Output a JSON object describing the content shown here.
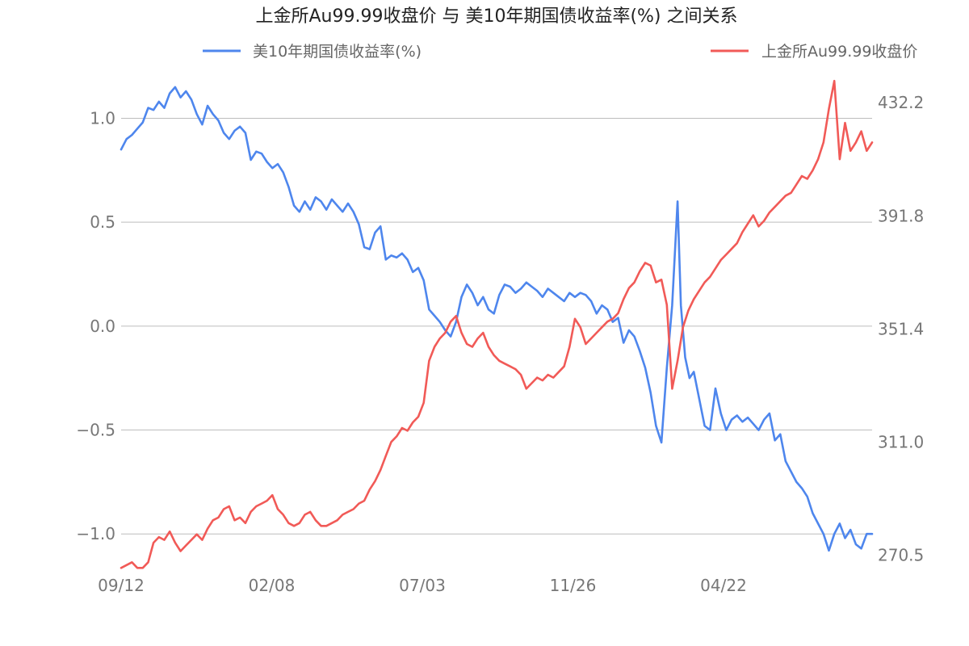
{
  "chart_data": {
    "type": "line",
    "title": "上金所Au99.99收盘价 与 美10年期国债收益率(%) 之间关系",
    "x_tick_labels": [
      "09/12",
      "02/08",
      "07/03",
      "11/26",
      "04/22"
    ],
    "y_left": {
      "ticks": [
        "1.0",
        "0.5",
        "0.0",
        "−0.5",
        "−1.0"
      ],
      "tick_values": [
        1.0,
        0.5,
        0.0,
        -0.5,
        -1.0
      ],
      "range": [
        -1.17,
        1.2
      ]
    },
    "y_right": {
      "ticks": [
        "432.2",
        "391.8",
        "351.4",
        "311.0",
        "270.5"
      ],
      "tick_values": [
        432.2,
        391.8,
        351.4,
        311.0,
        270.5
      ],
      "range": [
        265.5,
        441.5
      ]
    },
    "grid": true,
    "legend_placement": "top",
    "series": [
      {
        "name": "美10年期国债收益率(%)",
        "axis": "left",
        "color": "#4e86ed",
        "points": [
          [
            0,
            0.85
          ],
          [
            5,
            0.9
          ],
          [
            10,
            0.92
          ],
          [
            15,
            0.95
          ],
          [
            20,
            0.98
          ],
          [
            25,
            1.05
          ],
          [
            30,
            1.04
          ],
          [
            35,
            1.08
          ],
          [
            40,
            1.05
          ],
          [
            45,
            1.12
          ],
          [
            50,
            1.15
          ],
          [
            55,
            1.1
          ],
          [
            60,
            1.13
          ],
          [
            65,
            1.09
          ],
          [
            70,
            1.02
          ],
          [
            75,
            0.97
          ],
          [
            80,
            1.06
          ],
          [
            85,
            1.02
          ],
          [
            90,
            0.99
          ],
          [
            95,
            0.93
          ],
          [
            100,
            0.9
          ],
          [
            105,
            0.94
          ],
          [
            110,
            0.96
          ],
          [
            115,
            0.93
          ],
          [
            120,
            0.8
          ],
          [
            125,
            0.84
          ],
          [
            130,
            0.83
          ],
          [
            135,
            0.79
          ],
          [
            140,
            0.76
          ],
          [
            145,
            0.78
          ],
          [
            150,
            0.74
          ],
          [
            155,
            0.67
          ],
          [
            160,
            0.58
          ],
          [
            165,
            0.55
          ],
          [
            170,
            0.6
          ],
          [
            175,
            0.56
          ],
          [
            180,
            0.62
          ],
          [
            185,
            0.6
          ],
          [
            190,
            0.56
          ],
          [
            195,
            0.61
          ],
          [
            200,
            0.58
          ],
          [
            205,
            0.55
          ],
          [
            210,
            0.59
          ],
          [
            215,
            0.55
          ],
          [
            220,
            0.49
          ],
          [
            225,
            0.38
          ],
          [
            230,
            0.37
          ],
          [
            235,
            0.45
          ],
          [
            240,
            0.48
          ],
          [
            245,
            0.32
          ],
          [
            250,
            0.34
          ],
          [
            255,
            0.33
          ],
          [
            260,
            0.35
          ],
          [
            265,
            0.32
          ],
          [
            270,
            0.26
          ],
          [
            275,
            0.28
          ],
          [
            280,
            0.22
          ],
          [
            285,
            0.08
          ],
          [
            290,
            0.05
          ],
          [
            295,
            0.02
          ],
          [
            300,
            -0.02
          ],
          [
            305,
            -0.05
          ],
          [
            310,
            0.02
          ],
          [
            315,
            0.14
          ],
          [
            320,
            0.2
          ],
          [
            325,
            0.16
          ],
          [
            330,
            0.1
          ],
          [
            335,
            0.14
          ],
          [
            340,
            0.08
          ],
          [
            345,
            0.06
          ],
          [
            350,
            0.15
          ],
          [
            355,
            0.2
          ],
          [
            360,
            0.19
          ],
          [
            365,
            0.16
          ],
          [
            370,
            0.18
          ],
          [
            375,
            0.21
          ],
          [
            380,
            0.19
          ],
          [
            385,
            0.17
          ],
          [
            390,
            0.14
          ],
          [
            395,
            0.18
          ],
          [
            400,
            0.16
          ],
          [
            405,
            0.14
          ],
          [
            410,
            0.12
          ],
          [
            415,
            0.16
          ],
          [
            420,
            0.14
          ],
          [
            425,
            0.16
          ],
          [
            430,
            0.15
          ],
          [
            435,
            0.12
          ],
          [
            440,
            0.06
          ],
          [
            445,
            0.1
          ],
          [
            450,
            0.08
          ],
          [
            455,
            0.02
          ],
          [
            460,
            0.04
          ],
          [
            465,
            -0.08
          ],
          [
            470,
            -0.02
          ],
          [
            475,
            -0.05
          ],
          [
            480,
            -0.12
          ],
          [
            485,
            -0.2
          ],
          [
            490,
            -0.32
          ],
          [
            495,
            -0.48
          ],
          [
            500,
            -0.56
          ],
          [
            505,
            -0.2
          ],
          [
            510,
            0.1
          ],
          [
            515,
            0.6
          ],
          [
            518,
            0.1
          ],
          [
            522,
            -0.15
          ],
          [
            526,
            -0.25
          ],
          [
            530,
            -0.22
          ],
          [
            535,
            -0.35
          ],
          [
            540,
            -0.48
          ],
          [
            545,
            -0.5
          ],
          [
            550,
            -0.3
          ],
          [
            555,
            -0.42
          ],
          [
            560,
            -0.5
          ],
          [
            565,
            -0.45
          ],
          [
            570,
            -0.43
          ],
          [
            575,
            -0.46
          ],
          [
            580,
            -0.44
          ],
          [
            585,
            -0.47
          ],
          [
            590,
            -0.5
          ],
          [
            595,
            -0.45
          ],
          [
            600,
            -0.42
          ],
          [
            605,
            -0.55
          ],
          [
            610,
            -0.52
          ],
          [
            615,
            -0.65
          ],
          [
            620,
            -0.7
          ],
          [
            625,
            -0.75
          ],
          [
            630,
            -0.78
          ],
          [
            635,
            -0.82
          ],
          [
            640,
            -0.9
          ],
          [
            645,
            -0.95
          ],
          [
            650,
            -1.0
          ],
          [
            655,
            -1.08
          ],
          [
            660,
            -1.0
          ],
          [
            665,
            -0.95
          ],
          [
            670,
            -1.02
          ],
          [
            675,
            -0.98
          ],
          [
            680,
            -1.05
          ],
          [
            685,
            -1.07
          ],
          [
            690,
            -1.0
          ],
          [
            695,
            -1.0
          ]
        ]
      },
      {
        "name": "上金所Au99.99收盘价",
        "axis": "right",
        "color": "#f15a57",
        "points": [
          [
            0,
            266
          ],
          [
            5,
            267
          ],
          [
            10,
            268
          ],
          [
            15,
            266
          ],
          [
            20,
            266
          ],
          [
            25,
            268
          ],
          [
            30,
            275
          ],
          [
            35,
            277
          ],
          [
            40,
            276
          ],
          [
            45,
            279
          ],
          [
            50,
            275
          ],
          [
            55,
            272
          ],
          [
            60,
            274
          ],
          [
            65,
            276
          ],
          [
            70,
            278
          ],
          [
            75,
            276
          ],
          [
            80,
            280
          ],
          [
            85,
            283
          ],
          [
            90,
            284
          ],
          [
            95,
            287
          ],
          [
            100,
            288
          ],
          [
            105,
            283
          ],
          [
            110,
            284
          ],
          [
            115,
            282
          ],
          [
            120,
            286
          ],
          [
            125,
            288
          ],
          [
            130,
            289
          ],
          [
            135,
            290
          ],
          [
            140,
            292
          ],
          [
            145,
            287
          ],
          [
            150,
            285
          ],
          [
            155,
            282
          ],
          [
            160,
            281
          ],
          [
            165,
            282
          ],
          [
            170,
            285
          ],
          [
            175,
            286
          ],
          [
            180,
            283
          ],
          [
            185,
            281
          ],
          [
            190,
            281
          ],
          [
            195,
            282
          ],
          [
            200,
            283
          ],
          [
            205,
            285
          ],
          [
            210,
            286
          ],
          [
            215,
            287
          ],
          [
            220,
            289
          ],
          [
            225,
            290
          ],
          [
            230,
            294
          ],
          [
            235,
            297
          ],
          [
            240,
            301
          ],
          [
            245,
            306
          ],
          [
            250,
            311
          ],
          [
            255,
            313
          ],
          [
            260,
            316
          ],
          [
            265,
            315
          ],
          [
            270,
            318
          ],
          [
            275,
            320
          ],
          [
            280,
            325
          ],
          [
            285,
            340
          ],
          [
            290,
            345
          ],
          [
            295,
            348
          ],
          [
            300,
            350
          ],
          [
            305,
            354
          ],
          [
            310,
            356
          ],
          [
            315,
            350
          ],
          [
            320,
            346
          ],
          [
            325,
            345
          ],
          [
            330,
            348
          ],
          [
            335,
            350
          ],
          [
            340,
            345
          ],
          [
            345,
            342
          ],
          [
            350,
            340
          ],
          [
            355,
            339
          ],
          [
            360,
            338
          ],
          [
            365,
            337
          ],
          [
            370,
            335
          ],
          [
            375,
            330
          ],
          [
            380,
            332
          ],
          [
            385,
            334
          ],
          [
            390,
            333
          ],
          [
            395,
            335
          ],
          [
            400,
            334
          ],
          [
            405,
            336
          ],
          [
            410,
            338
          ],
          [
            415,
            345
          ],
          [
            420,
            355
          ],
          [
            425,
            352
          ],
          [
            430,
            346
          ],
          [
            435,
            348
          ],
          [
            440,
            350
          ],
          [
            445,
            352
          ],
          [
            450,
            354
          ],
          [
            455,
            355
          ],
          [
            460,
            357
          ],
          [
            465,
            362
          ],
          [
            470,
            366
          ],
          [
            475,
            368
          ],
          [
            480,
            372
          ],
          [
            485,
            375
          ],
          [
            490,
            374
          ],
          [
            495,
            368
          ],
          [
            500,
            369
          ],
          [
            505,
            360
          ],
          [
            510,
            330
          ],
          [
            515,
            340
          ],
          [
            520,
            352
          ],
          [
            525,
            358
          ],
          [
            530,
            362
          ],
          [
            535,
            365
          ],
          [
            540,
            368
          ],
          [
            545,
            370
          ],
          [
            550,
            373
          ],
          [
            555,
            376
          ],
          [
            560,
            378
          ],
          [
            565,
            380
          ],
          [
            570,
            382
          ],
          [
            575,
            386
          ],
          [
            580,
            389
          ],
          [
            585,
            392
          ],
          [
            590,
            388
          ],
          [
            595,
            390
          ],
          [
            600,
            393
          ],
          [
            605,
            395
          ],
          [
            610,
            397
          ],
          [
            615,
            399
          ],
          [
            620,
            400
          ],
          [
            625,
            403
          ],
          [
            630,
            406
          ],
          [
            635,
            405
          ],
          [
            640,
            408
          ],
          [
            645,
            412
          ],
          [
            650,
            418
          ],
          [
            655,
            430
          ],
          [
            660,
            440
          ],
          [
            665,
            412
          ],
          [
            670,
            425
          ],
          [
            675,
            415
          ],
          [
            680,
            418
          ],
          [
            685,
            422
          ],
          [
            690,
            415
          ],
          [
            695,
            418
          ]
        ]
      }
    ]
  }
}
